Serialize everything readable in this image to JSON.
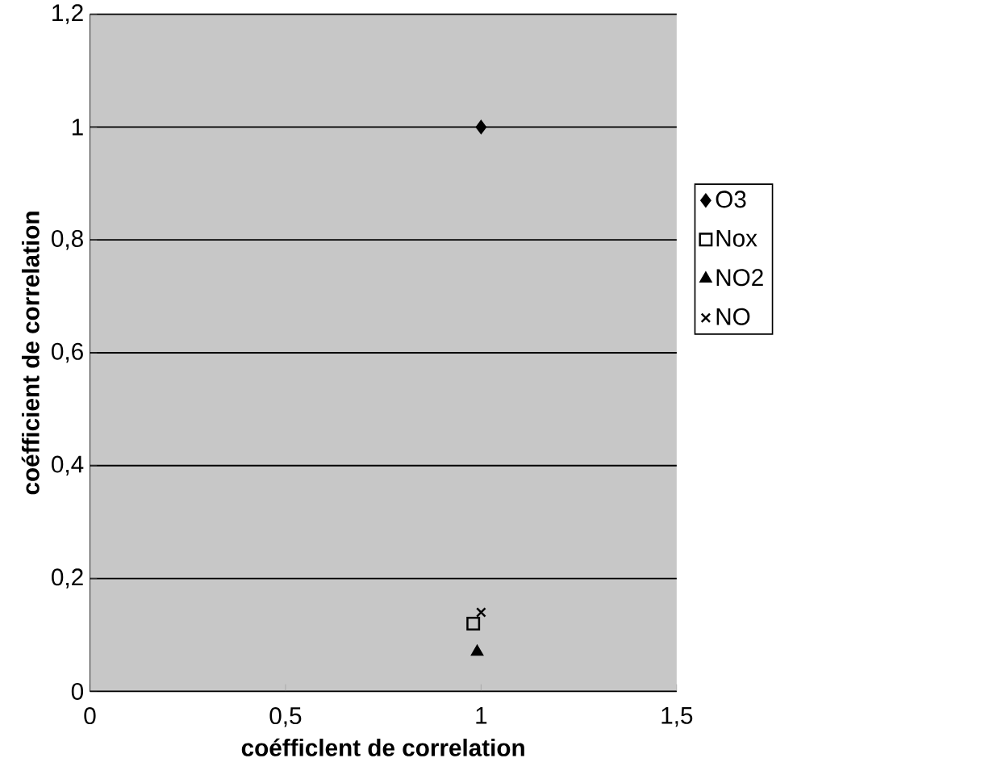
{
  "chart_data": {
    "type": "scatter",
    "xlabel": "coéfficlent de correlation",
    "ylabel": "coéfficient de correlation",
    "xlim": [
      0,
      1.5
    ],
    "xticks": [
      0,
      {
        "value": 0.5,
        "label": "0,5"
      },
      1,
      {
        "value": 1.5,
        "label": "1,5"
      }
    ],
    "ylim": [
      0,
      1.2
    ],
    "yticks": [
      0,
      {
        "value": 0.2,
        "label": "0,2"
      },
      {
        "value": 0.4,
        "label": "0,4"
      },
      {
        "value": 0.6,
        "label": "0,6"
      },
      {
        "value": 0.8,
        "label": "0,8"
      },
      1,
      {
        "value": 1.2,
        "label": "1,2"
      }
    ],
    "grid": "y",
    "legend": "right",
    "series": [
      {
        "name": "O3",
        "color": "#000000",
        "marker": "diamond",
        "x": [
          1.0
        ],
        "values": [
          1.0
        ]
      },
      {
        "name": "Nox",
        "color": "#000000",
        "marker": "square",
        "x": [
          0.98
        ],
        "values": [
          0.12
        ]
      },
      {
        "name": "NO2",
        "color": "#000000",
        "marker": "triangle",
        "x": [
          0.99
        ],
        "values": [
          0.07
        ]
      },
      {
        "name": "NO",
        "color": "#000000",
        "marker": "cross",
        "x": [
          1.0
        ],
        "values": [
          0.14
        ]
      }
    ]
  }
}
